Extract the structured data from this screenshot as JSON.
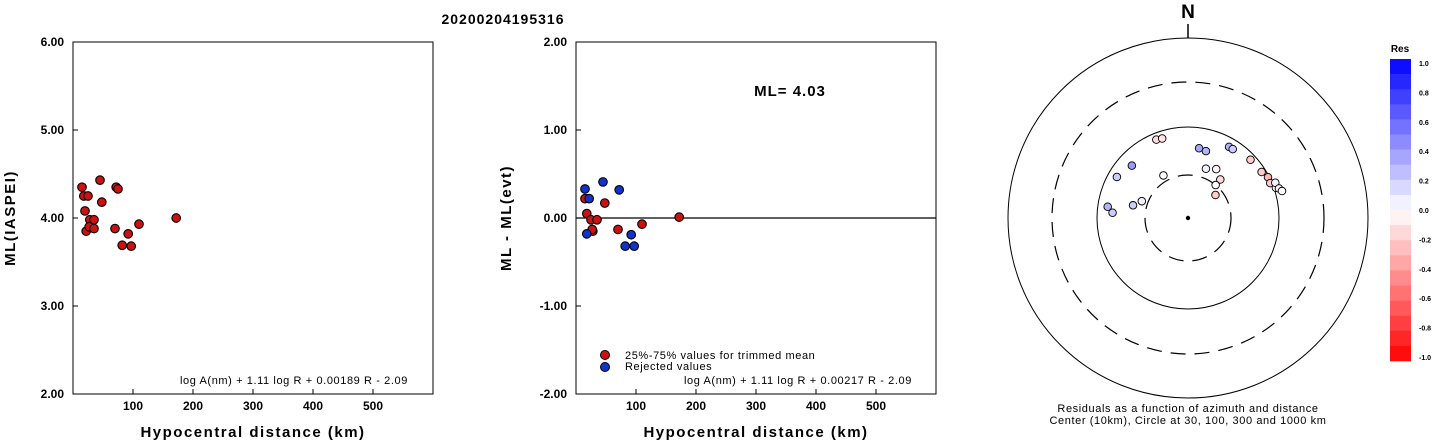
{
  "title": "20200204195316",
  "chart_data": [
    {
      "type": "scatter",
      "xlabel": "Hypocentral distance (km)",
      "ylabel": "ML(IASPEI)",
      "xlim": [
        0,
        600
      ],
      "ylim": [
        2.0,
        6.0
      ],
      "xticks": [
        "100",
        "200",
        "300",
        "400",
        "500"
      ],
      "yticks": [
        "2.00",
        "3.00",
        "4.00",
        "5.00",
        "6.00"
      ],
      "formula": "log A(nm) + 1.11 log R + 0.00189 R - 2.09",
      "series": [
        {
          "color": "#cc1111",
          "x": [
            15,
            18,
            25,
            20,
            28,
            35,
            22,
            27,
            35,
            45,
            48,
            72,
            75,
            70,
            82,
            92,
            97,
            110,
            172
          ],
          "y": [
            4.35,
            4.25,
            4.25,
            4.08,
            3.98,
            3.98,
            3.85,
            3.9,
            3.88,
            4.43,
            4.18,
            4.35,
            4.33,
            3.88,
            3.69,
            3.82,
            3.68,
            3.93,
            4.0
          ]
        }
      ]
    },
    {
      "type": "scatter",
      "xlabel": "Hypocentral distance (km)",
      "ylabel": "ML - ML(evt)",
      "xlim": [
        0,
        600
      ],
      "ylim": [
        -2.0,
        2.0
      ],
      "xticks": [
        "100",
        "200",
        "300",
        "400",
        "500"
      ],
      "yticks": [
        "-2.00",
        "-1.00",
        "0.00",
        "1.00",
        "2.00"
      ],
      "annotation": "ML= 4.03",
      "formula": "log A(nm) + 1.11 log R + 0.00217 R - 2.09",
      "legend": [
        {
          "label": "25%-75% values for trimmed mean",
          "color": "#cc1111"
        },
        {
          "label": "Rejected values",
          "color": "#1133cc"
        }
      ],
      "series": [
        {
          "color": "#cc1111",
          "x": [
            15,
            18,
            25,
            28,
            35,
            27,
            48,
            70,
            110,
            172
          ],
          "y": [
            0.22,
            0.05,
            -0.02,
            -0.15,
            -0.02,
            -0.13,
            0.17,
            -0.13,
            -0.07,
            0.01
          ]
        },
        {
          "color": "#1133cc",
          "x": [
            15,
            22,
            18,
            45,
            72,
            82,
            92,
            97
          ],
          "y": [
            0.33,
            0.22,
            -0.18,
            0.41,
            0.32,
            -0.32,
            -0.19,
            -0.32
          ]
        }
      ]
    },
    {
      "type": "polar-scatter",
      "north_label": "N",
      "caption_line1": "Residuals as a function of azimuth and distance",
      "caption_line2": "Center (10km), Circle at 30, 100, 300 and 1000 km",
      "rings_km": [
        30,
        100,
        300,
        1000
      ],
      "colorbar": {
        "title": "Res",
        "labels": [
          "1.0",
          "0.8",
          "0.6",
          "0.4",
          "0.2",
          "0.0",
          "-0.2",
          "-0.4",
          "-0.6",
          "-0.8",
          "-1.0"
        ],
        "high_color": "#0000ff",
        "low_color": "#ff0000"
      },
      "points": [
        {
          "az": 338,
          "dist": 85,
          "res": -0.15
        },
        {
          "az": 342,
          "dist": 83,
          "res": -0.1
        },
        {
          "az": 313,
          "dist": 70,
          "res": 0.4
        },
        {
          "az": 300,
          "dist": 80,
          "res": 0.2
        },
        {
          "az": 278,
          "dist": 78,
          "res": 0.3
        },
        {
          "az": 274,
          "dist": 68,
          "res": 0.2
        },
        {
          "az": 290,
          "dist": 35,
          "res": 0.05
        },
        {
          "az": 283,
          "dist": 42,
          "res": 0.2
        },
        {
          "az": 330,
          "dist": 35,
          "res": 0.02
        },
        {
          "az": 9,
          "dist": 60,
          "res": 0.35
        },
        {
          "az": 15,
          "dist": 58,
          "res": 0.3
        },
        {
          "az": 30,
          "dist": 80,
          "res": 0.3
        },
        {
          "az": 33,
          "dist": 80,
          "res": 0.2
        },
        {
          "az": 47,
          "dist": 87,
          "res": -0.2
        },
        {
          "az": 58,
          "dist": 90,
          "res": -0.2
        },
        {
          "az": 63,
          "dist": 97,
          "res": -0.3
        },
        {
          "az": 67,
          "dist": 96,
          "res": -0.2
        },
        {
          "az": 71,
          "dist": 105,
          "res": 0.02
        },
        {
          "az": 68,
          "dist": 108,
          "res": 0.05
        },
        {
          "az": 72,
          "dist": 112,
          "res": -0.05
        },
        {
          "az": 74,
          "dist": 118,
          "res": 0.0
        },
        {
          "az": 20,
          "dist": 38,
          "res": 0.05
        },
        {
          "az": 30,
          "dist": 42,
          "res": -0.05
        },
        {
          "az": 40,
          "dist": 36,
          "res": -0.15
        },
        {
          "az": 40,
          "dist": 30,
          "res": 0.02
        },
        {
          "az": 50,
          "dist": 25,
          "res": -0.2
        }
      ]
    }
  ]
}
